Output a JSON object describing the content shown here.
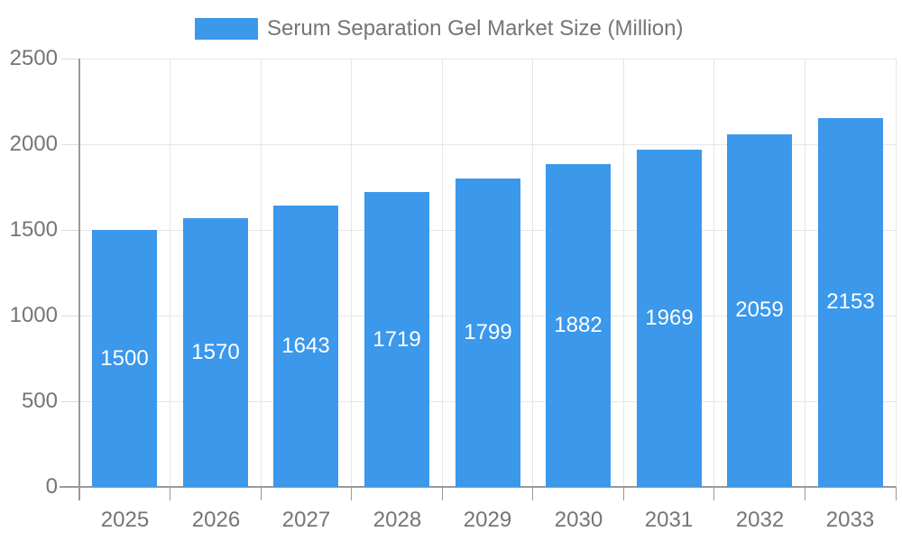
{
  "legend": {
    "label": "Serum Separation Gel Market Size (Million)"
  },
  "colors": {
    "bg": "#ffffff",
    "bar": "#3B98EB",
    "grid": "#e6e6e6",
    "axis": "#999999",
    "tick": "#dcdcdc",
    "text": "#757575",
    "value": "#ffffff"
  },
  "chart_data": {
    "type": "bar",
    "title": "Serum Separation Gel Market Size (Million)",
    "series_name": "Serum Separation Gel Market Size (Million)",
    "categories": [
      "2025",
      "2026",
      "2027",
      "2028",
      "2029",
      "2030",
      "2031",
      "2032",
      "2033"
    ],
    "values": [
      1500,
      1570,
      1643,
      1719,
      1799,
      1882,
      1969,
      2059,
      2153
    ],
    "xlabel": "",
    "ylabel": "",
    "ylim": [
      0,
      2500
    ],
    "yticks": [
      0,
      500,
      1000,
      1500,
      2000,
      2500
    ],
    "grid": true,
    "legend_position": "top-center",
    "value_label_position": "inside-middle"
  }
}
